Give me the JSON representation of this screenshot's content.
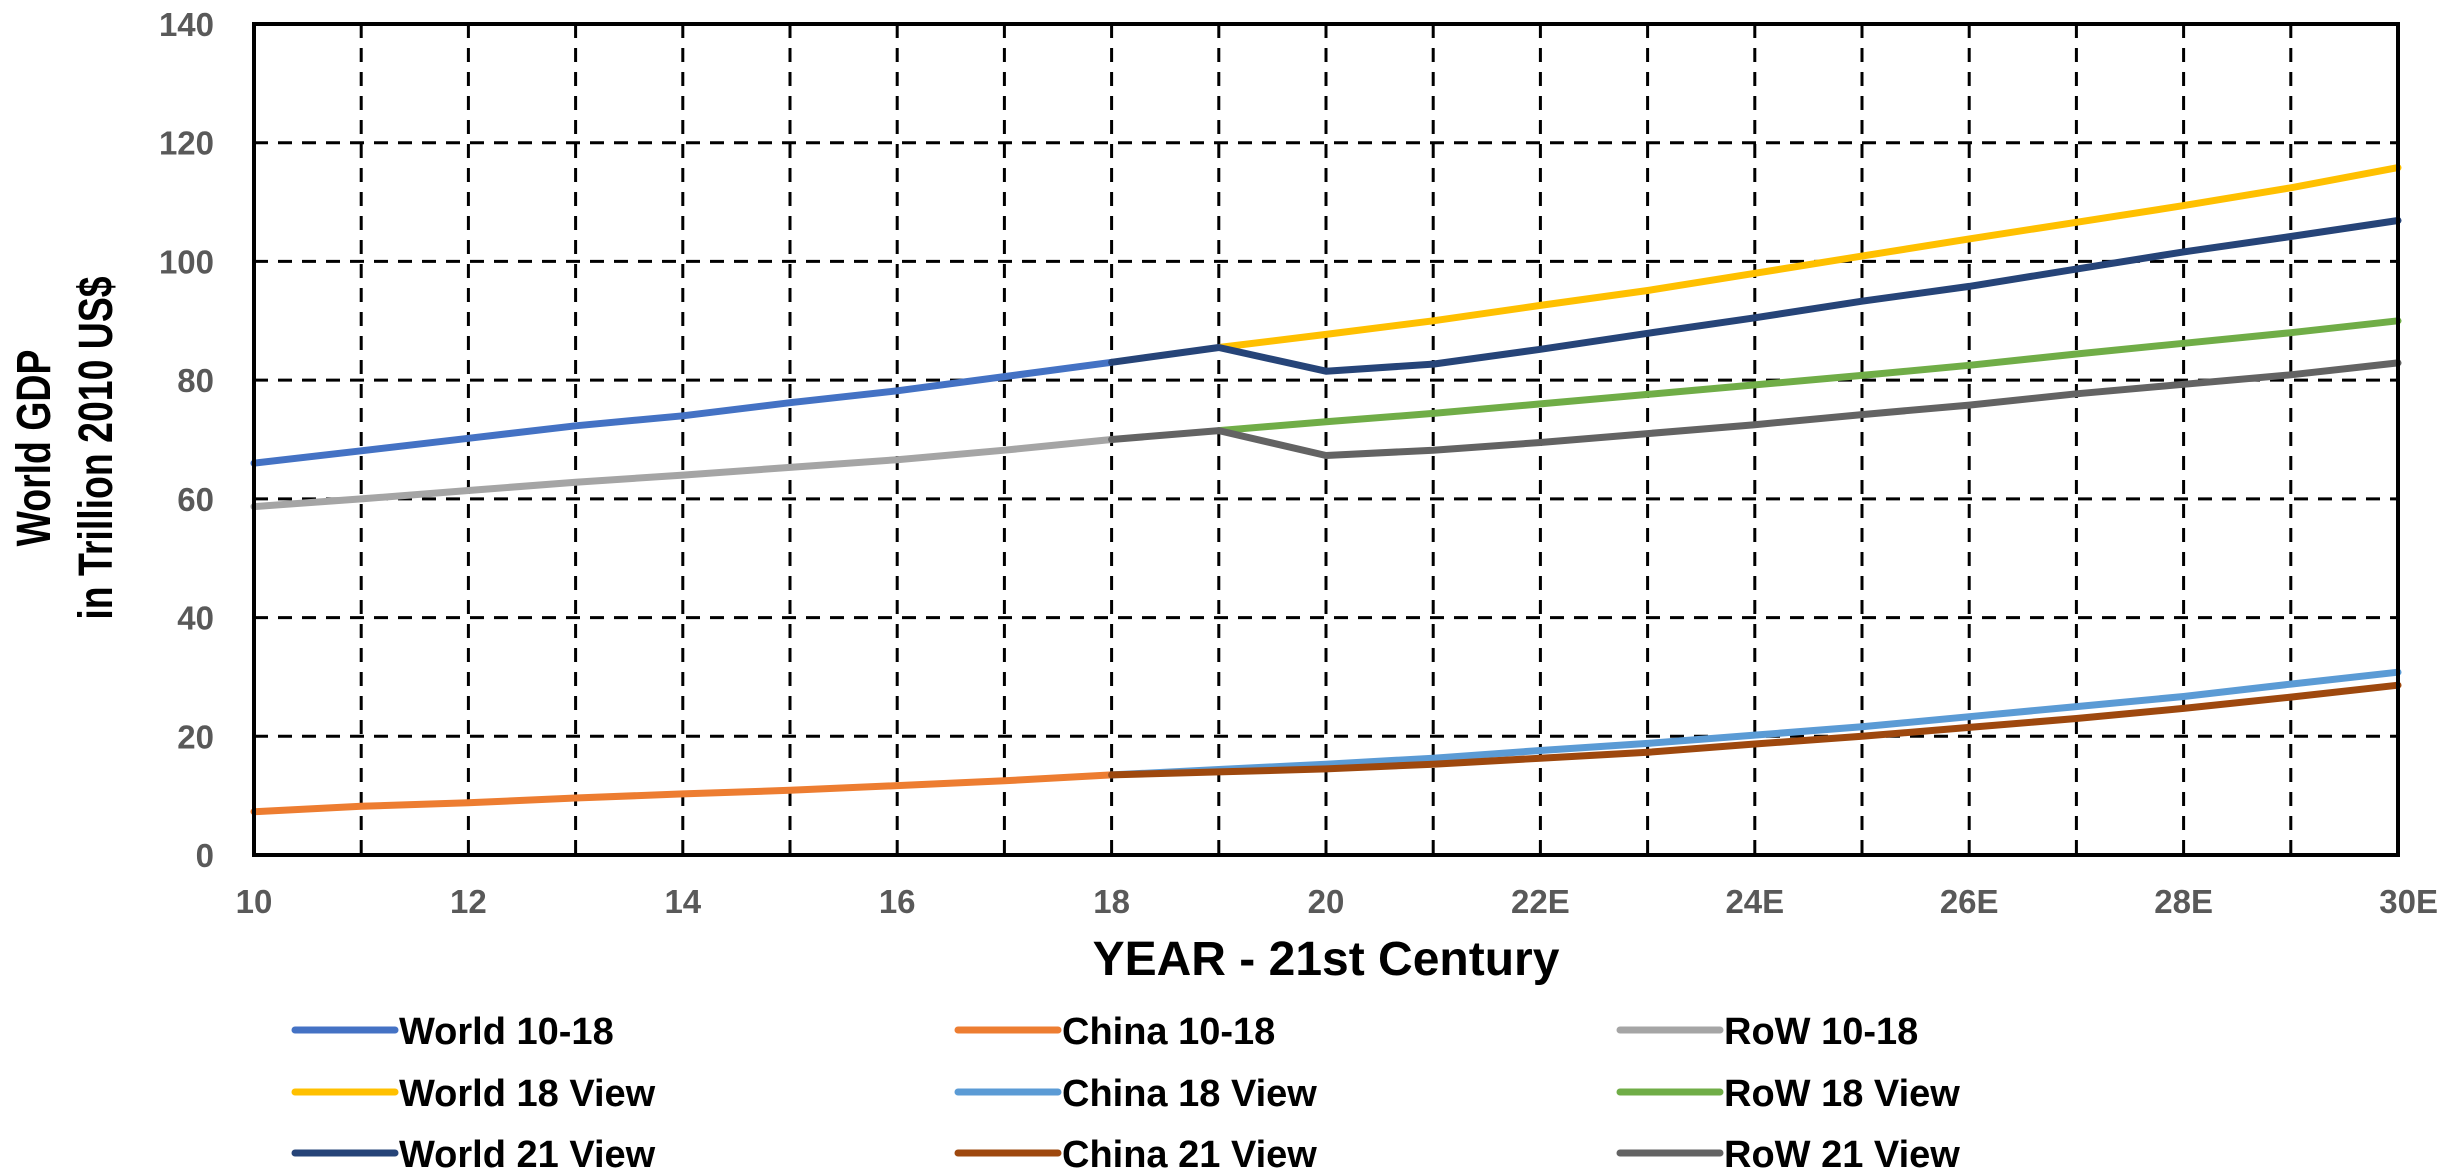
{
  "chart_data": {
    "type": "line",
    "title": "",
    "xlabel": "YEAR - 21st Century",
    "ylabel_lines": [
      "World GDP",
      "in Trillion 2010 US$"
    ],
    "x_tick_labels": [
      "10",
      "12",
      "14",
      "16",
      "18",
      "20",
      "22E",
      "24E",
      "26E",
      "28E",
      "30E"
    ],
    "xlim": [
      10,
      30
    ],
    "ylim": [
      0,
      140
    ],
    "y_ticks": [
      0,
      20,
      40,
      60,
      80,
      100,
      120,
      140
    ],
    "grid": true,
    "legend_position": "bottom",
    "series": [
      {
        "name": "World 10-18",
        "color": "#4472C4",
        "x": [
          10,
          11,
          12,
          13,
          14,
          15,
          16,
          17,
          18
        ],
        "y": [
          66.0,
          68.1,
          70.2,
          72.3,
          74.0,
          76.2,
          78.2,
          80.6,
          83.0
        ]
      },
      {
        "name": "China 10-18",
        "color": "#ED7D31",
        "x": [
          10,
          11,
          12,
          13,
          14,
          15,
          16,
          17,
          18
        ],
        "y": [
          7.3,
          8.2,
          8.8,
          9.6,
          10.3,
          10.9,
          11.7,
          12.5,
          13.5
        ]
      },
      {
        "name": "RoW 10-18",
        "color": "#A5A5A5",
        "x": [
          10,
          11,
          12,
          13,
          14,
          15,
          16,
          17,
          18
        ],
        "y": [
          58.7,
          60.0,
          61.4,
          62.8,
          64.0,
          65.3,
          66.6,
          68.2,
          70.0
        ]
      },
      {
        "name": "World 18 View",
        "color": "#FFC000",
        "x": [
          19,
          20,
          21,
          22,
          23,
          24,
          25,
          26,
          27,
          28,
          29,
          30
        ],
        "y": [
          85.5,
          87.7,
          90.0,
          92.6,
          95.1,
          98.0,
          100.9,
          103.8,
          106.6,
          109.4,
          112.4,
          115.8
        ]
      },
      {
        "name": "China 18 View",
        "color": "#5B9BD5",
        "x": [
          18,
          19,
          20,
          21,
          22,
          23,
          24,
          25,
          26,
          27,
          28,
          29,
          30
        ],
        "y": [
          13.5,
          14.4,
          15.3,
          16.3,
          17.6,
          18.8,
          20.2,
          21.6,
          23.3,
          25.0,
          26.7,
          28.8,
          30.8
        ]
      },
      {
        "name": "RoW 18 View",
        "color": "#70AD47",
        "x": [
          19,
          20,
          21,
          22,
          23,
          24,
          25,
          26,
          27,
          28,
          29,
          30
        ],
        "y": [
          71.5,
          73.0,
          74.4,
          76.0,
          77.6,
          79.2,
          80.8,
          82.5,
          84.4,
          86.2,
          88.0,
          90.0
        ]
      },
      {
        "name": "World 21 View",
        "color": "#264478",
        "x": [
          18,
          19,
          20,
          21,
          22,
          23,
          24,
          25,
          26,
          27,
          28,
          29,
          30
        ],
        "y": [
          83.0,
          85.5,
          81.5,
          82.7,
          85.2,
          87.9,
          90.5,
          93.3,
          95.8,
          98.7,
          101.6,
          104.2,
          106.9
        ]
      },
      {
        "name": "China 21 View",
        "color": "#9E480E",
        "x": [
          18,
          19,
          20,
          21,
          22,
          23,
          24,
          25,
          26,
          27,
          28,
          29,
          30
        ],
        "y": [
          13.5,
          14.0,
          14.5,
          15.3,
          16.3,
          17.3,
          18.7,
          20.0,
          21.5,
          23.0,
          24.7,
          26.6,
          28.6
        ]
      },
      {
        "name": "RoW 21 View",
        "color": "#636363",
        "x": [
          18,
          19,
          20,
          21,
          22,
          23,
          24,
          25,
          26,
          27,
          28,
          29,
          30
        ],
        "y": [
          70.0,
          71.5,
          67.3,
          68.2,
          69.5,
          71.0,
          72.5,
          74.2,
          75.8,
          77.7,
          79.3,
          80.9,
          82.9
        ]
      }
    ]
  }
}
